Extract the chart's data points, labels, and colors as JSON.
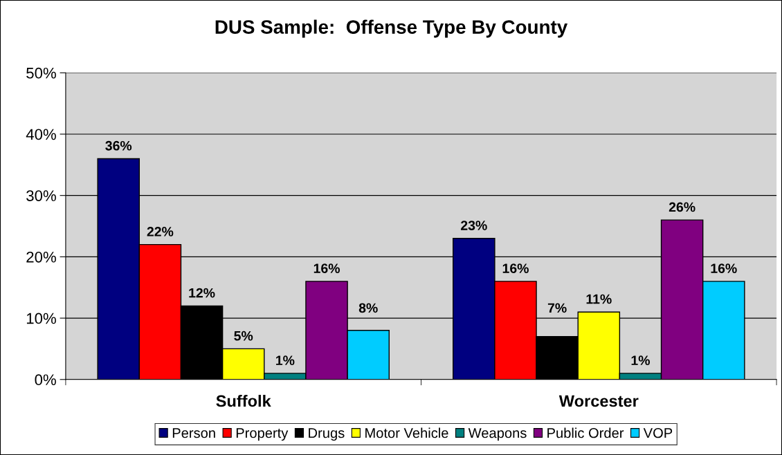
{
  "chart_data": {
    "type": "bar",
    "title": "DUS Sample:  Offense Type By County",
    "categories": [
      "Suffolk",
      "Worcester"
    ],
    "series": [
      {
        "name": "Person",
        "color": "#000080",
        "values": [
          36,
          23
        ],
        "value_labels": [
          "36%",
          "23%"
        ]
      },
      {
        "name": "Property",
        "color": "#ff0000",
        "values": [
          22,
          16
        ],
        "value_labels": [
          "22%",
          "16%"
        ]
      },
      {
        "name": "Drugs",
        "color": "#000000",
        "values": [
          12,
          7
        ],
        "value_labels": [
          "12%",
          "7%"
        ]
      },
      {
        "name": "Motor Vehicle",
        "color": "#ffff00",
        "values": [
          5,
          11
        ],
        "value_labels": [
          "5%",
          "11%"
        ]
      },
      {
        "name": "Weapons",
        "color": "#008080",
        "values": [
          1,
          1
        ],
        "value_labels": [
          "1%",
          "1%"
        ]
      },
      {
        "name": "Public Order",
        "color": "#800080",
        "values": [
          16,
          26
        ],
        "value_labels": [
          "16%",
          "26%"
        ]
      },
      {
        "name": "VOP",
        "color": "#00ccff",
        "values": [
          8,
          16
        ],
        "value_labels": [
          "8%",
          "16%"
        ]
      }
    ],
    "ylim": [
      0,
      50
    ],
    "yticks": [
      {
        "value": 0,
        "label": "0%"
      },
      {
        "value": 10,
        "label": "10%"
      },
      {
        "value": 20,
        "label": "20%"
      },
      {
        "value": 30,
        "label": "30%"
      },
      {
        "value": 40,
        "label": "40%"
      },
      {
        "value": 50,
        "label": "50%"
      }
    ],
    "grid": "y",
    "legend": "bottom"
  }
}
